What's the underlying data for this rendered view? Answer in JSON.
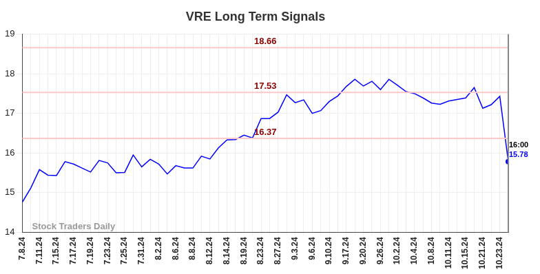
{
  "chart_data": {
    "type": "line",
    "title": "VRE Long Term Signals",
    "categories": [
      "7.8.24",
      null,
      "7.11.24",
      null,
      "7.15.24",
      null,
      "7.17.24",
      null,
      "7.19.24",
      null,
      "7.23.24",
      null,
      "7.25.24",
      null,
      "7.31.24",
      null,
      "8.2.24",
      null,
      "8.6.24",
      null,
      "8.8.24",
      null,
      "8.12.24",
      null,
      "8.14.24",
      null,
      "8.19.24",
      null,
      "8.23.24",
      null,
      "8.27.24",
      null,
      "9.3.24",
      null,
      "9.6.24",
      null,
      "9.10.24",
      null,
      "9.17.24",
      null,
      "9.20.24",
      null,
      "9.26.24",
      null,
      "10.2.24",
      null,
      "10.4.24",
      null,
      "10.8.24",
      null,
      "10.11.24",
      null,
      "10.15.24",
      null,
      "10.21.24",
      null,
      "10.23.24",
      null
    ],
    "values": [
      14.76,
      15.12,
      15.58,
      15.44,
      15.43,
      15.78,
      15.72,
      15.62,
      15.52,
      15.81,
      15.75,
      15.5,
      15.51,
      15.95,
      15.65,
      15.84,
      15.72,
      15.47,
      15.68,
      15.62,
      15.62,
      15.92,
      15.85,
      16.13,
      16.33,
      16.34,
      16.45,
      16.38,
      16.87,
      16.87,
      17.03,
      17.47,
      17.27,
      17.34,
      17.0,
      17.07,
      17.3,
      17.44,
      17.68,
      17.86,
      17.69,
      17.81,
      17.6,
      17.86,
      17.71,
      17.55,
      17.5,
      17.39,
      17.26,
      17.23,
      17.31,
      17.35,
      17.39,
      17.65,
      17.13,
      17.22,
      17.43,
      15.78
    ],
    "color": "#0000ff",
    "ylim": [
      14,
      19
    ],
    "yticks": [
      14,
      15,
      16,
      17,
      18,
      19
    ],
    "grid": true,
    "levels": [
      18.66,
      17.53,
      16.37
    ],
    "last_point_label": "16:00",
    "watermark": "Stock Traders Daily"
  }
}
